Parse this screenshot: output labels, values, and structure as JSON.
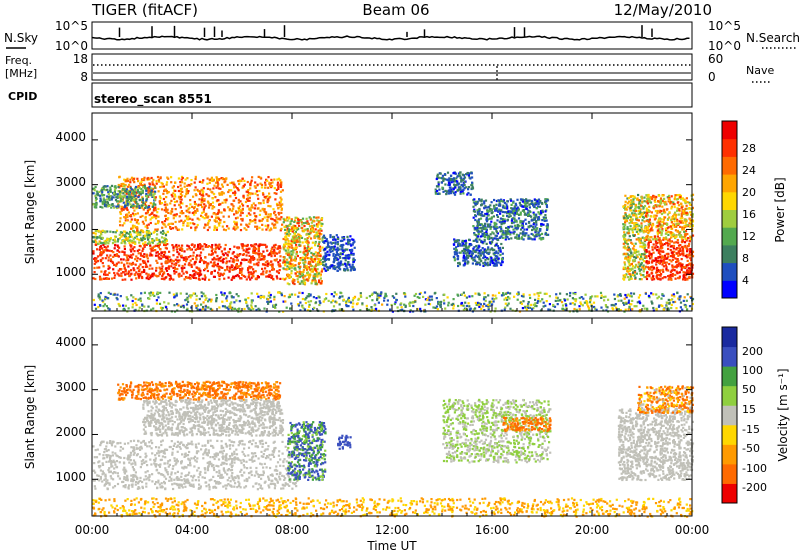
{
  "header": {
    "radar": "TIGER (fitACF)",
    "beam": "Beam 06",
    "date": "12/May/2010"
  },
  "noise_panel": {
    "left_label": "N.Sky",
    "left_ticks": [
      "10^5",
      "10^0"
    ],
    "right_label": "N.Search",
    "right_ticks": [
      "10^5",
      "10^0"
    ]
  },
  "freq_panel": {
    "left_label_line1": "Freq.",
    "left_label_line2": "[MHz]",
    "left_ticks": [
      "18",
      "8"
    ],
    "right_label": "Nave",
    "right_ticks": [
      "60",
      "0"
    ]
  },
  "cpid_panel": {
    "label": "CPID",
    "mode": "stereo_scan 8551"
  },
  "x_axis": {
    "title": "Time UT",
    "tick_labels": [
      "00:00",
      "04:00",
      "08:00",
      "12:00",
      "16:00",
      "20:00",
      "00:00"
    ],
    "range_hours": [
      0,
      24
    ]
  },
  "power_panel": {
    "ylabel": "Slant Range [km]",
    "yticks": [
      "1000",
      "2000",
      "3000",
      "4000"
    ],
    "colorbar_label": "Power [dB]",
    "colorbar_ticks": [
      "28",
      "24",
      "20",
      "16",
      "12",
      "8",
      "4"
    ]
  },
  "velocity_panel": {
    "ylabel": "Slant Range [km]",
    "yticks": [
      "1000",
      "2000",
      "3000",
      "4000"
    ],
    "colorbar_label": "Velocity [m s⁻¹]",
    "colorbar_ticks": [
      "200",
      "100",
      "50",
      "15",
      "-15",
      "-50",
      "-100",
      "-200"
    ]
  },
  "chart_data": {
    "type": "heatmap",
    "x_unit": "hours UT",
    "x_range": [
      0,
      24
    ],
    "y_range_km": [
      180,
      4600
    ],
    "power": {
      "colorscale_db": [
        0,
        32
      ],
      "colors": [
        "#0000ff",
        "#1f4fbf",
        "#3c7f5f",
        "#53a94f",
        "#9fcd3f",
        "#ffd700",
        "#ffa500",
        "#ff6a00",
        "#ff3000",
        "#ee0000"
      ],
      "scatter_regions": [
        {
          "t": [
            0.0,
            7.5
          ],
          "r": [
            900,
            1700
          ],
          "db": [
            24,
            30
          ]
        },
        {
          "t": [
            0.0,
            3.0
          ],
          "r": [
            1700,
            2000
          ],
          "db": [
            8,
            20
          ]
        },
        {
          "t": [
            1.0,
            7.6
          ],
          "r": [
            2000,
            3200
          ],
          "db": [
            18,
            28
          ]
        },
        {
          "t": [
            0.0,
            2.5
          ],
          "r": [
            2500,
            3000
          ],
          "db": [
            4,
            16
          ]
        },
        {
          "t": [
            7.6,
            9.2
          ],
          "r": [
            800,
            2300
          ],
          "db": [
            10,
            28
          ]
        },
        {
          "t": [
            9.2,
            10.5
          ],
          "r": [
            1100,
            1900
          ],
          "db": [
            2,
            8
          ]
        },
        {
          "t": [
            13.7,
            15.2
          ],
          "r": [
            2800,
            3300
          ],
          "db": [
            2,
            10
          ]
        },
        {
          "t": [
            15.2,
            18.2
          ],
          "r": [
            1800,
            2700
          ],
          "db": [
            2,
            12
          ]
        },
        {
          "t": [
            14.4,
            16.4
          ],
          "r": [
            1200,
            1800
          ],
          "db": [
            2,
            10
          ]
        },
        {
          "t": [
            21.2,
            22.1
          ],
          "r": [
            900,
            2800
          ],
          "db": [
            8,
            24
          ]
        },
        {
          "t": [
            22.1,
            24.0
          ],
          "r": [
            900,
            1800
          ],
          "db": [
            24,
            30
          ]
        },
        {
          "t": [
            22.1,
            24.0
          ],
          "r": [
            1800,
            2800
          ],
          "db": [
            12,
            28
          ]
        },
        {
          "t": [
            0.0,
            24.0
          ],
          "r": [
            190,
            620
          ],
          "db": [
            2,
            20
          ]
        }
      ]
    },
    "velocity": {
      "colorscale_ms": [
        -200,
        200
      ],
      "bins": [
        -200,
        -100,
        -50,
        -15,
        15,
        50,
        100,
        200
      ],
      "colors": [
        "#ee0000",
        "#ff6a00",
        "#ff9a00",
        "#ffd700",
        "#c0c0b8",
        "#8fcf3f",
        "#43a140",
        "#3a4fbf",
        "#1a2a9f"
      ],
      "scatter_regions": [
        {
          "t": [
            0.0,
            8.2
          ],
          "r": [
            800,
            1900
          ],
          "v": [
            -15,
            15
          ]
        },
        {
          "t": [
            1.0,
            7.5
          ],
          "r": [
            2800,
            3200
          ],
          "v": [
            -200,
            -50
          ]
        },
        {
          "t": [
            2.0,
            7.6
          ],
          "r": [
            2000,
            2800
          ],
          "v": [
            -15,
            15
          ]
        },
        {
          "t": [
            7.8,
            9.3
          ],
          "r": [
            1000,
            2300
          ],
          "v": [
            15,
            200
          ]
        },
        {
          "t": [
            9.8,
            10.3
          ],
          "r": [
            1700,
            2000
          ],
          "v": [
            100,
            200
          ]
        },
        {
          "t": [
            14.0,
            18.3
          ],
          "r": [
            1400,
            2800
          ],
          "v": [
            -15,
            50
          ]
        },
        {
          "t": [
            16.4,
            18.3
          ],
          "r": [
            2100,
            2400
          ],
          "v": [
            -200,
            -50
          ]
        },
        {
          "t": [
            21.0,
            24.0
          ],
          "r": [
            1000,
            2600
          ],
          "v": [
            -15,
            15
          ]
        },
        {
          "t": [
            21.8,
            24.0
          ],
          "r": [
            2500,
            3100
          ],
          "v": [
            -200,
            15
          ]
        },
        {
          "t": [
            0.0,
            24.0
          ],
          "r": [
            190,
            600
          ],
          "v": [
            -100,
            -15
          ]
        }
      ]
    },
    "noise_series": {
      "name": "N.Sky",
      "level": "approx 10^1 with sporadic spikes"
    },
    "frequency": {
      "dotted_line": "~13-14 MHz",
      "solid_line": "~9 MHz"
    }
  }
}
